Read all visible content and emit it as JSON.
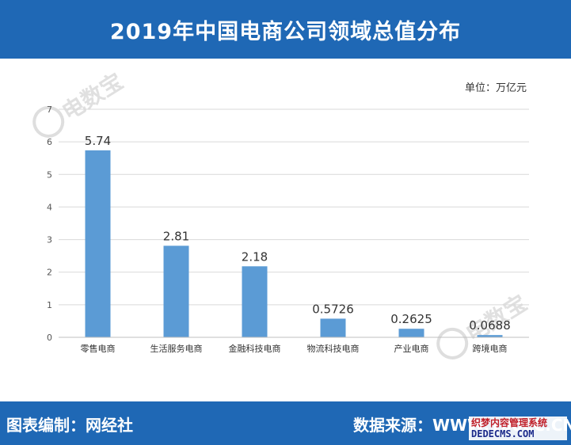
{
  "header": {
    "title": "2019年中国电商公司领域总值分布"
  },
  "unit_label": "单位：万亿元",
  "chart_data": {
    "type": "bar",
    "title": "2019年中国电商公司领域总值分布",
    "xlabel": "",
    "ylabel": "",
    "ylim": [
      0,
      7
    ],
    "yticks": [
      0,
      1,
      2,
      3,
      4,
      5,
      6,
      7
    ],
    "grid": true,
    "legend": "none",
    "categories": [
      "零售电商",
      "生活服务电商",
      "金融科技电商",
      "物流科技电商",
      "产业电商",
      "跨境电商"
    ],
    "values": [
      5.74,
      2.81,
      2.18,
      0.5726,
      0.2625,
      0.0688
    ],
    "value_labels": [
      "5.74",
      "2.81",
      "2.18",
      "0.5726",
      "0.2625",
      "0.0688"
    ],
    "bar_color": "#5b9bd5"
  },
  "footer": {
    "left": "图表编制：网经社",
    "right": "数据来源：WWW.100EC.CN"
  },
  "watermark": {
    "text": "电数宝",
    "stamp_zh": "织梦内容管理系统",
    "stamp_en": "DEDECMS.COM"
  },
  "colors": {
    "brand": "#1f68b5",
    "bar": "#5b9bd5",
    "grid": "#d9d9d9"
  }
}
